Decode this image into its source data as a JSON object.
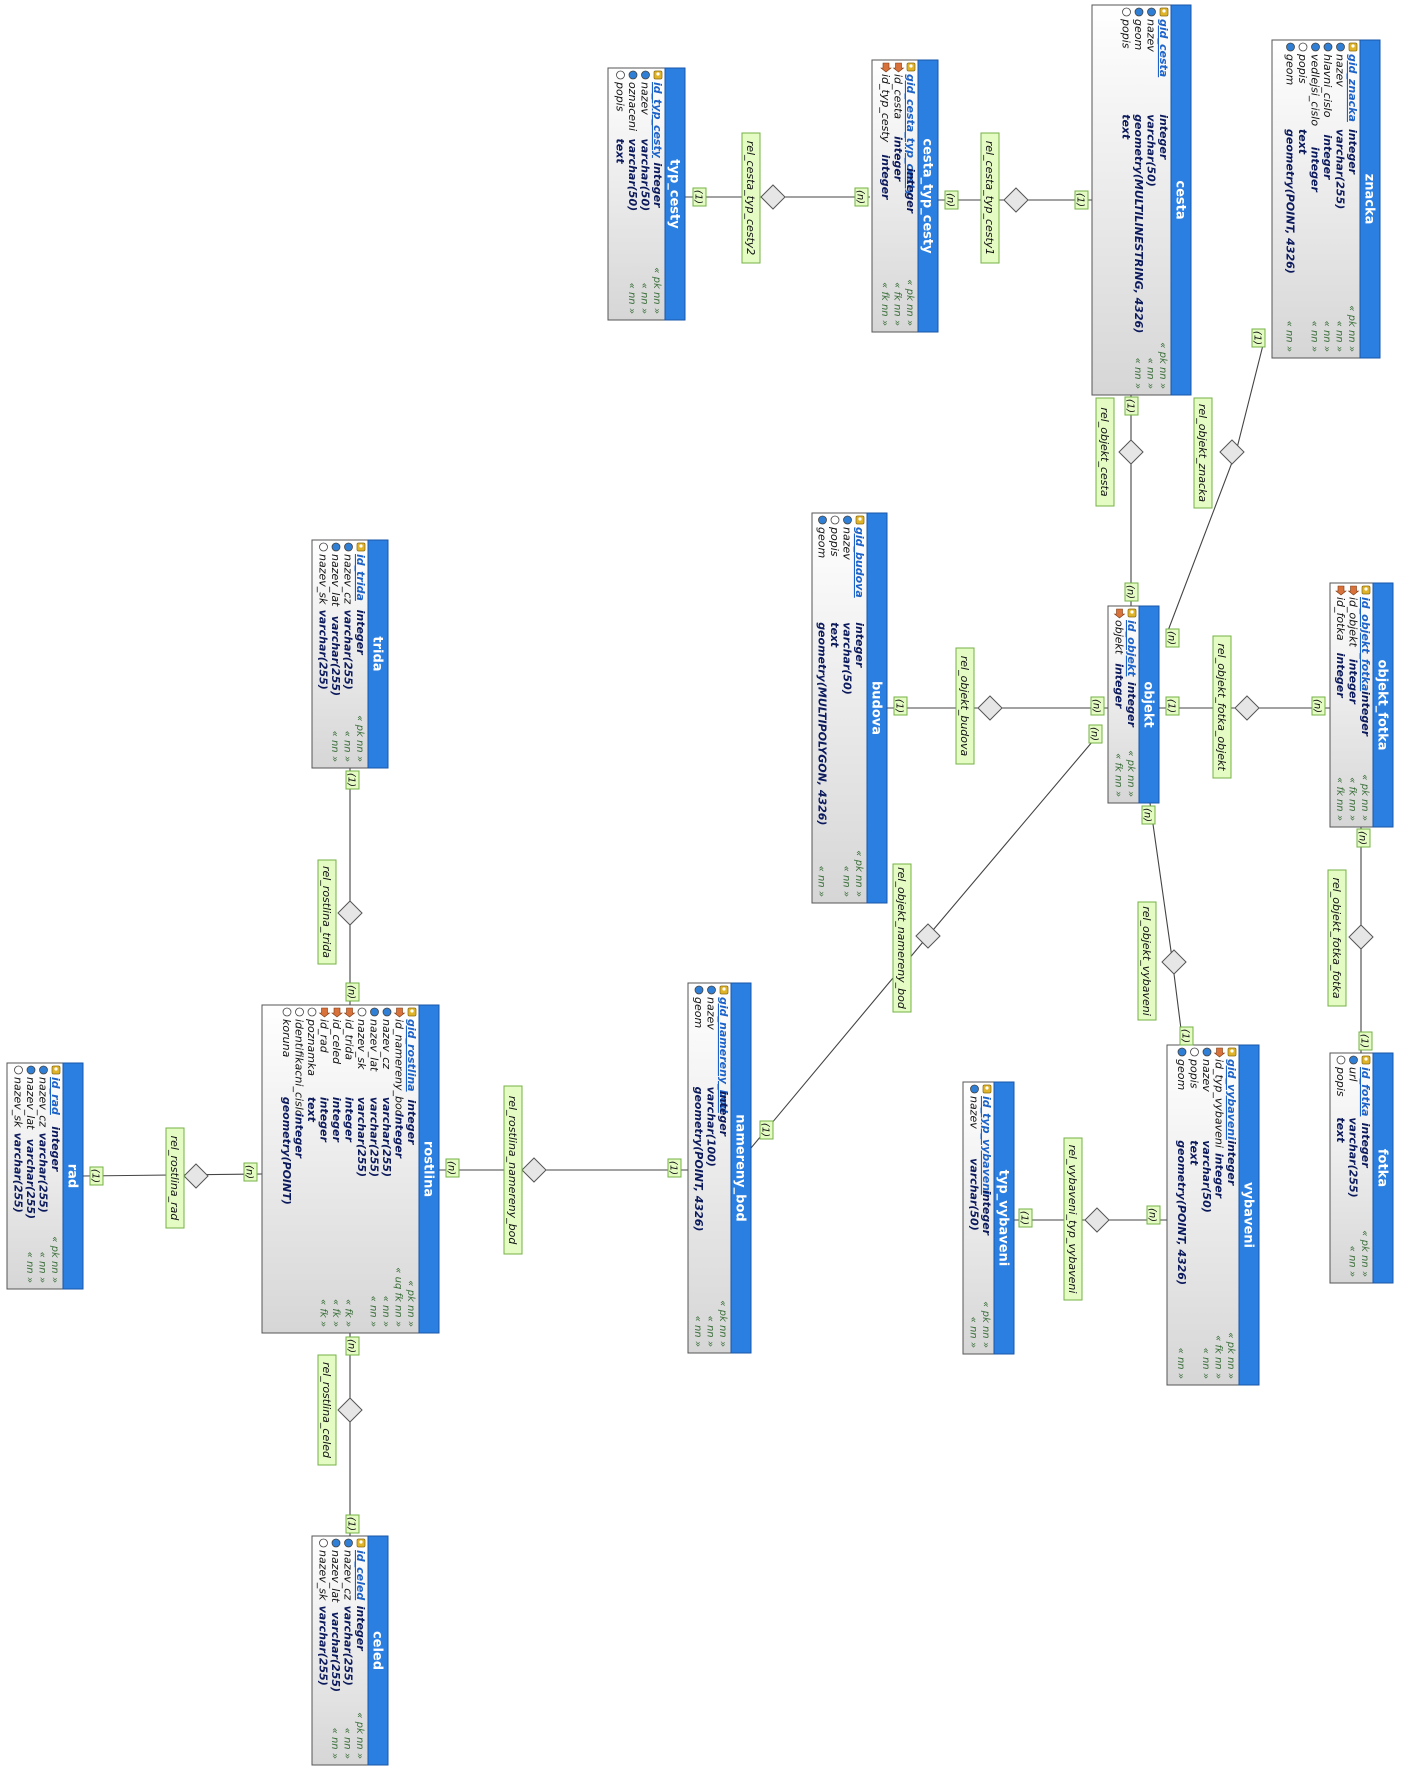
{
  "colors": {
    "header": "#2b7fe0",
    "header_edge": "#1957a8",
    "body_top": "#ffffff",
    "body_bottom": "#d9d9d9",
    "label_fill": "#e4fbc4",
    "label_stroke": "#73b044",
    "line": "#444444",
    "pk_icon": "#e0b428",
    "fk_icon": "#d9713b",
    "nn_icon": "#2f7fd6",
    "plain_icon": "#ffffff"
  },
  "tables": [
    {
      "id": "typ_cesty",
      "title": "typ_cesty",
      "columns": [
        {
          "name": "id_typ_cesty",
          "type": "integer",
          "cons": "« pk nn »",
          "icon": "pk-icon",
          "pk": true
        },
        {
          "name": "nazev",
          "type": "varchar(50)",
          "cons": "« nn »",
          "icon": "nn-icon"
        },
        {
          "name": "oznaceni",
          "type": "varchar(50)",
          "cons": "« nn »",
          "icon": "nn-icon"
        },
        {
          "name": "popis",
          "type": "text",
          "cons": "",
          "icon": "column-icon"
        }
      ]
    },
    {
      "id": "cesta_typ_cesty",
      "title": "cesta_typ_cesty",
      "columns": [
        {
          "name": "gid_cesta_typ_cesty",
          "type": "integer",
          "cons": "« pk nn »",
          "icon": "pk-icon",
          "pk": true
        },
        {
          "name": "id_cesta",
          "type": "integer",
          "cons": "« fk nn »",
          "icon": "fk-icon"
        },
        {
          "name": "id_typ_cesty",
          "type": "integer",
          "cons": "« fk nn »",
          "icon": "fk-icon"
        }
      ]
    },
    {
      "id": "cesta",
      "title": "cesta",
      "columns": [
        {
          "name": "gid_cesta",
          "type": "integer",
          "cons": "« pk nn »",
          "icon": "pk-icon",
          "pk": true
        },
        {
          "name": "nazev",
          "type": "varchar(50)",
          "cons": "« nn »",
          "icon": "nn-icon"
        },
        {
          "name": "geom",
          "type": "geometry(MULTILINESTRING, 4326)",
          "cons": "« nn »",
          "icon": "nn-icon"
        },
        {
          "name": "popis",
          "type": "text",
          "cons": "",
          "icon": "column-icon"
        }
      ]
    },
    {
      "id": "znacka",
      "title": "znacka",
      "columns": [
        {
          "name": "gid_znacka",
          "type": "integer",
          "cons": "« pk nn »",
          "icon": "pk-icon",
          "pk": true
        },
        {
          "name": "nazev",
          "type": "varchar(255)",
          "cons": "« nn »",
          "icon": "nn-icon"
        },
        {
          "name": "hlavni_cislo",
          "type": "integer",
          "cons": "« nn »",
          "icon": "nn-icon"
        },
        {
          "name": "vedlejsi_cislo",
          "type": "integer",
          "cons": "« nn »",
          "icon": "nn-icon"
        },
        {
          "name": "popis",
          "type": "text",
          "cons": "",
          "icon": "column-icon"
        },
        {
          "name": "geom",
          "type": "geometry(POINT, 4326)",
          "cons": "« nn »",
          "icon": "nn-icon"
        }
      ]
    },
    {
      "id": "budova",
      "title": "budova",
      "columns": [
        {
          "name": "gid_budova",
          "type": "integer",
          "cons": "« pk nn »",
          "icon": "pk-icon",
          "pk": true
        },
        {
          "name": "nazev",
          "type": "varchar(50)",
          "cons": "« nn »",
          "icon": "nn-icon"
        },
        {
          "name": "popis",
          "type": "text",
          "cons": "",
          "icon": "column-icon"
        },
        {
          "name": "geom",
          "type": "geometry(MULTIPOLYGON, 4326)",
          "cons": "« nn »",
          "icon": "nn-icon"
        }
      ]
    },
    {
      "id": "objekt",
      "title": "objekt",
      "columns": [
        {
          "name": "id_objekt",
          "type": "integer",
          "cons": "« pk nn »",
          "icon": "pk-icon",
          "pk": true
        },
        {
          "name": "objekt",
          "type": "integer",
          "cons": "« fk nn »",
          "icon": "fk-icon"
        }
      ]
    },
    {
      "id": "objekt_fotka",
      "title": "objekt_fotka",
      "columns": [
        {
          "name": "id_objekt_fotka",
          "type": "integer",
          "cons": "« pk nn »",
          "icon": "pk-icon",
          "pk": true
        },
        {
          "name": "id_objekt",
          "type": "integer",
          "cons": "« fk nn »",
          "icon": "fk-icon"
        },
        {
          "name": "id_fotka",
          "type": "integer",
          "cons": "« fk nn »",
          "icon": "fk-icon"
        }
      ]
    },
    {
      "id": "fotka",
      "title": "fotka",
      "columns": [
        {
          "name": "id_fotka",
          "type": "integer",
          "cons": "« pk nn »",
          "icon": "pk-icon",
          "pk": true
        },
        {
          "name": "url",
          "type": "varchar(255)",
          "cons": "« nn »",
          "icon": "nn-icon"
        },
        {
          "name": "popis",
          "type": "text",
          "cons": "",
          "icon": "column-icon"
        }
      ]
    },
    {
      "id": "vybaveni",
      "title": "vybaveni",
      "columns": [
        {
          "name": "gid_vybaveni",
          "type": "integer",
          "cons": "« pk nn »",
          "icon": "pk-icon",
          "pk": true
        },
        {
          "name": "id_typ_vybaveni",
          "type": "integer",
          "cons": "« fk nn »",
          "icon": "fk-icon"
        },
        {
          "name": "nazev",
          "type": "varchar(50)",
          "cons": "« nn »",
          "icon": "nn-icon"
        },
        {
          "name": "popis",
          "type": "text",
          "cons": "",
          "icon": "column-icon"
        },
        {
          "name": "geom",
          "type": "geometry(POINT, 4326)",
          "cons": "« nn »",
          "icon": "nn-icon"
        }
      ]
    },
    {
      "id": "typ_vybaveni",
      "title": "typ_vybaveni",
      "columns": [
        {
          "name": "id_typ_vybaveni",
          "type": "integer",
          "cons": "« pk nn »",
          "icon": "pk-icon",
          "pk": true
        },
        {
          "name": "nazev",
          "type": "varchar(50)",
          "cons": "« nn »",
          "icon": "nn-icon"
        }
      ]
    },
    {
      "id": "trida",
      "title": "trida",
      "columns": [
        {
          "name": "id_trida",
          "type": "integer",
          "cons": "« pk nn »",
          "icon": "pk-icon",
          "pk": true
        },
        {
          "name": "nazev_cz",
          "type": "varchar(255)",
          "cons": "« nn »",
          "icon": "nn-icon"
        },
        {
          "name": "nazev_lat",
          "type": "varchar(255)",
          "cons": "« nn »",
          "icon": "nn-icon"
        },
        {
          "name": "nazev_sk",
          "type": "varchar(255)",
          "cons": "",
          "icon": "column-icon"
        }
      ]
    },
    {
      "id": "rostlina",
      "title": "rostlina",
      "columns": [
        {
          "name": "gid_rostlina",
          "type": "integer",
          "cons": "« pk nn »",
          "icon": "pk-icon",
          "pk": true
        },
        {
          "name": "id_namereny_bod",
          "type": "integer",
          "cons": "« uq fk nn »",
          "icon": "fk-icon"
        },
        {
          "name": "nazev_cz",
          "type": "varchar(255)",
          "cons": "« nn »",
          "icon": "nn-icon"
        },
        {
          "name": "nazev_lat",
          "type": "varchar(255)",
          "cons": "« nn »",
          "icon": "nn-icon"
        },
        {
          "name": "nazev_sk",
          "type": "varchar(255)",
          "cons": "",
          "icon": "column-icon"
        },
        {
          "name": "id_trida",
          "type": "integer",
          "cons": "« fk »",
          "icon": "fk-icon"
        },
        {
          "name": "id_celed",
          "type": "integer",
          "cons": "« fk »",
          "icon": "fk-icon"
        },
        {
          "name": "id_rad",
          "type": "integer",
          "cons": "« fk »",
          "icon": "fk-icon"
        },
        {
          "name": "poznamka",
          "type": "text",
          "cons": "",
          "icon": "column-icon"
        },
        {
          "name": "identifikacni_cislo",
          "type": "integer",
          "cons": "",
          "icon": "column-icon"
        },
        {
          "name": "koruna",
          "type": "geometry(POINT)",
          "cons": "",
          "icon": "column-icon"
        }
      ]
    },
    {
      "id": "rad",
      "title": "rad",
      "columns": [
        {
          "name": "id_rad",
          "type": "integer",
          "cons": "« pk nn »",
          "icon": "pk-icon",
          "pk": true
        },
        {
          "name": "nazev_cz",
          "type": "varchar(255)",
          "cons": "« nn »",
          "icon": "nn-icon"
        },
        {
          "name": "nazev_lat",
          "type": "varchar(255)",
          "cons": "« nn »",
          "icon": "nn-icon"
        },
        {
          "name": "nazev_sk",
          "type": "varchar(255)",
          "cons": "",
          "icon": "column-icon"
        }
      ]
    },
    {
      "id": "celed",
      "title": "celed",
      "columns": [
        {
          "name": "id_celed",
          "type": "integer",
          "cons": "« pk nn »",
          "icon": "pk-icon",
          "pk": true
        },
        {
          "name": "nazev_cz",
          "type": "varchar(255)",
          "cons": "« nn »",
          "icon": "nn-icon"
        },
        {
          "name": "nazev_lat",
          "type": "varchar(255)",
          "cons": "« nn »",
          "icon": "nn-icon"
        },
        {
          "name": "nazev_sk",
          "type": "varchar(255)",
          "cons": "",
          "icon": "column-icon"
        }
      ]
    },
    {
      "id": "namereny_bod",
      "title": "namereny_bod",
      "columns": [
        {
          "name": "gid_namereny_bod",
          "type": "integer",
          "cons": "« pk nn »",
          "icon": "pk-icon",
          "pk": true
        },
        {
          "name": "nazev",
          "type": "varchar(100)",
          "cons": "« nn »",
          "icon": "nn-icon"
        },
        {
          "name": "geom",
          "type": "geometry(POINT, 4326)",
          "cons": "« nn »",
          "icon": "nn-icon"
        }
      ]
    }
  ],
  "relationships": [
    {
      "id": "rel_cesta_typ_cesty2",
      "label": "rel_cesta_typ_cesty2",
      "from_card": "(1)",
      "to_card": "(n)"
    },
    {
      "id": "rel_cesta_typ_cesty1",
      "label": "rel_cesta_typ_cesty1",
      "from_card": "(n)",
      "to_card": "(1)"
    },
    {
      "id": "rel_objekt_cesta",
      "label": "rel_objekt_cesta",
      "from_card": "(1)",
      "to_card": "(n)"
    },
    {
      "id": "rel_objekt_znacka",
      "label": "rel_objekt_znacka",
      "from_card": "(1)",
      "to_card": "(n)"
    },
    {
      "id": "rel_objekt_budova",
      "label": "rel_objekt_budova",
      "from_card": "(1)",
      "to_card": "(n)"
    },
    {
      "id": "rel_objekt_fotka_objekt",
      "label": "rel_objekt_fotka_objekt",
      "from_card": "(1)",
      "to_card": "(n)"
    },
    {
      "id": "rel_objekt_fotka_fotka",
      "label": "rel_objekt_fotka_fotka",
      "from_card": "(n)",
      "to_card": "(1)"
    },
    {
      "id": "rel_objekt_vybaveni",
      "label": "rel_objekt_vybaveni",
      "from_card": "(n)",
      "to_card": "(1)"
    },
    {
      "id": "rel_objekt_namereny_bod",
      "label": "rel_objekt_namereny_bod",
      "from_card": "(n)",
      "to_card": "(1)"
    },
    {
      "id": "rel_vybaveni_typ_vybaveni",
      "label": "rel_vybaveni_typ_vybaveni",
      "from_card": "(1)",
      "to_card": "(n)"
    },
    {
      "id": "rel_rostlina_trida",
      "label": "rel_rostlina_trida",
      "from_card": "(1)",
      "to_card": "(n)"
    },
    {
      "id": "rel_rostlina_namereny_bod",
      "label": "rel_rostlina_namereny_bod",
      "from_card": "(n)",
      "to_card": "(1)"
    },
    {
      "id": "rel_rostlina_rad",
      "label": "rel_rostlina_rad",
      "from_card": "(1)",
      "to_card": "(n)"
    },
    {
      "id": "rel_rostlina_celed",
      "label": "rel_rostlina_celed",
      "from_card": "(n)",
      "to_card": "(1)"
    }
  ]
}
